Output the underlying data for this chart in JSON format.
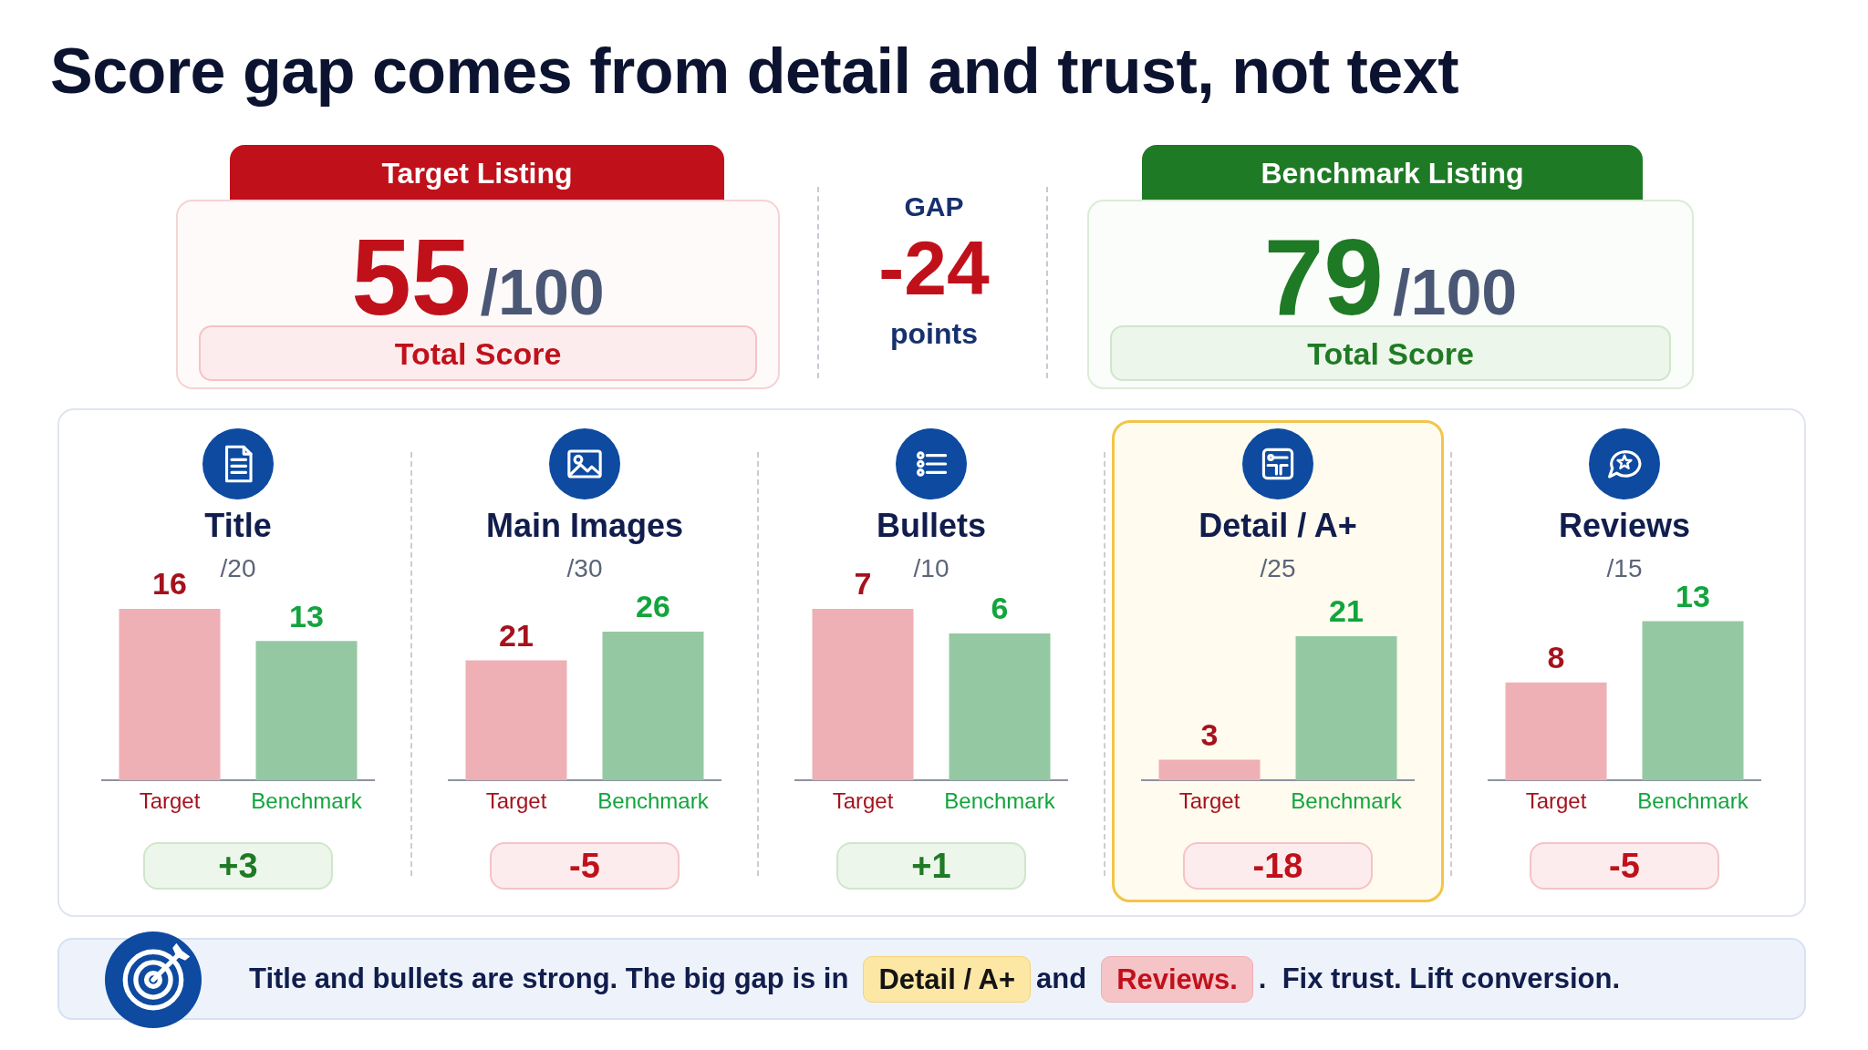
{
  "chart_data": [
    {
      "type": "other",
      "title": "Score gap comes from detail and trust, not text"
    },
    {
      "type": "other",
      "title": "Target Listing",
      "annotations": [
        "55",
        "/100",
        "Total Score"
      ]
    },
    {
      "type": "other",
      "title": "GAP",
      "annotations": [
        "-24",
        "points"
      ]
    },
    {
      "type": "other",
      "title": "Benchmark Listing",
      "annotations": [
        "79",
        "/100",
        "Total Score"
      ]
    },
    {
      "type": "bar",
      "title": "Title",
      "subtitle": "/20",
      "categories": [
        "Target",
        "Benchmark"
      ],
      "values": [
        16,
        13
      ],
      "colors": [
        "#eeb0b4",
        "#94c8a3"
      ],
      "data_labels": true,
      "tick_labels": "x",
      "annotations": [
        "+3"
      ]
    },
    {
      "type": "bar",
      "title": "Main Images",
      "subtitle": "/30",
      "categories": [
        "Target",
        "Benchmark"
      ],
      "values": [
        21,
        26
      ],
      "colors": [
        "#eeb0b4",
        "#94c8a3"
      ],
      "data_labels": true,
      "tick_labels": "x",
      "annotations": [
        "-5"
      ]
    },
    {
      "type": "bar",
      "title": "Bullets",
      "subtitle": "/10",
      "categories": [
        "Target",
        "Benchmark"
      ],
      "values": [
        7,
        6
      ],
      "colors": [
        "#eeb0b4",
        "#94c8a3"
      ],
      "data_labels": true,
      "tick_labels": "x",
      "annotations": [
        "+1"
      ]
    },
    {
      "type": "bar",
      "title": "Detail / A+",
      "subtitle": "/25",
      "categories": [
        "Target",
        "Benchmark"
      ],
      "values": [
        3,
        21
      ],
      "colors": [
        "#eeb0b4",
        "#94c8a3"
      ],
      "data_labels": true,
      "tick_labels": "x",
      "annotations": [
        "-18"
      ]
    },
    {
      "type": "bar",
      "title": "Reviews",
      "subtitle": "/15",
      "categories": [
        "Target",
        "Benchmark"
      ],
      "values": [
        8,
        13
      ],
      "colors": [
        "#eeb0b4",
        "#94c8a3"
      ],
      "data_labels": true,
      "tick_labels": "x",
      "annotations": [
        "-5"
      ]
    },
    {
      "type": "other",
      "annotations": [
        "Title and bullets are strong. The big gap is in",
        "Detail / A+",
        "and",
        "Reviews.",
        ".  Fix trust. Lift conversion."
      ]
    }
  ]
}
